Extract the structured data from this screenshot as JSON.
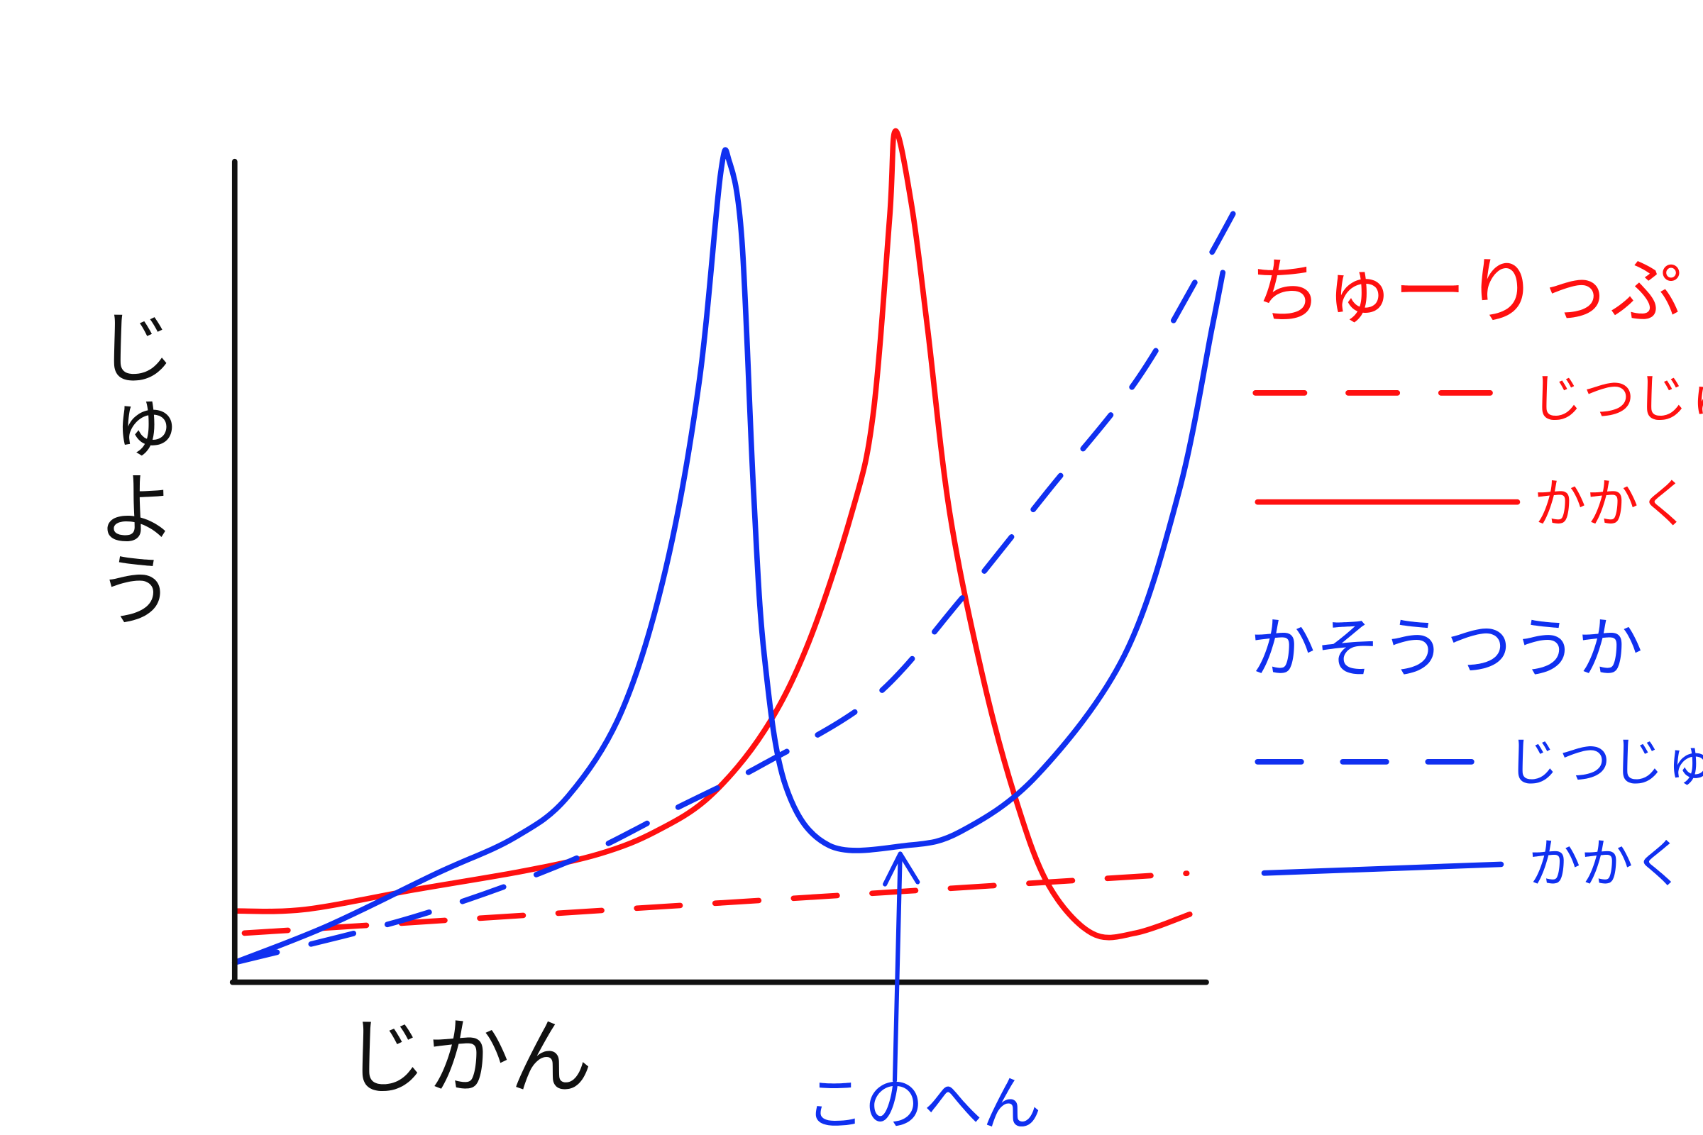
{
  "chart_data": {
    "type": "line",
    "title": "",
    "xlabel": "じかん",
    "ylabel": "じゅよう",
    "xlim": [
      0,
      104
    ],
    "ylim": [
      0,
      105
    ],
    "grid": false,
    "ticks": false,
    "legend_placement": "right",
    "colors": {
      "tulip": "#ff1010",
      "crypto": "#1030f0",
      "axis": "#111111"
    },
    "groups": [
      {
        "name": "ちゅーりっぷ",
        "color": "#ff1010",
        "series": [
          {
            "name": "じつじゅ",
            "style": "dashed",
            "x": [
              1,
              98
            ],
            "y": [
              6,
              13.3
            ]
          },
          {
            "name": "かかく",
            "style": "solid",
            "x": [
              0,
              7.3,
              18.5,
              29.8,
              37.6,
              43.3,
              48.9,
              54.5,
              59,
              63.5,
              65.7,
              67.4,
              68,
              69.7,
              71.3,
              73.6,
              77,
              80.3,
              83.7,
              88.2,
              92.7,
              98.3
            ],
            "y": [
              8.7,
              8.9,
              11.3,
              13.6,
              15.7,
              18.4,
              22.7,
              30.7,
              41.3,
              57.3,
              69.3,
              93.3,
              104,
              94.7,
              80,
              57.3,
              37.3,
              22.7,
              12,
              6,
              6,
              8.3
            ]
          }
        ]
      },
      {
        "name": "かそうつうか",
        "color": "#1030f0",
        "series": [
          {
            "name": "じつじゅ",
            "style": "dashed",
            "x": [
              0,
              18.5,
              34.3,
              45.5,
              54.5,
              65.7,
              74.7,
              83.7,
              92.7,
              99.4,
              103.4
            ],
            "y": [
              2.4,
              8,
              14.7,
              21.3,
              26.7,
              34.7,
              46.7,
              60,
              73.3,
              86.7,
              95.3
            ]
          },
          {
            "name": "かかく",
            "style": "solid",
            "x": [
              0,
              9.6,
              20.8,
              28.7,
              34.3,
              39.9,
              44.4,
              47.8,
              50,
              50.9,
              52.2,
              53.4,
              54.5,
              56.7,
              61.2,
              69.1,
              74.7,
              82.6,
              91.6,
              97.2,
              100.6,
              101.7
            ],
            "y": [
              2.4,
              6.9,
              13.3,
              17.6,
              22.7,
              33.3,
              50.7,
              73.3,
              98.7,
              100.3,
              90.7,
              60,
              40,
              24,
              16.7,
              16.7,
              18.4,
              25.3,
              40,
              60,
              80,
              86.7
            ]
          }
        ]
      }
    ],
    "annotations": [
      {
        "text": "このへん",
        "points_to": {
          "x": 68.5,
          "y": 16.5
        },
        "color": "#1030f0"
      }
    ]
  }
}
